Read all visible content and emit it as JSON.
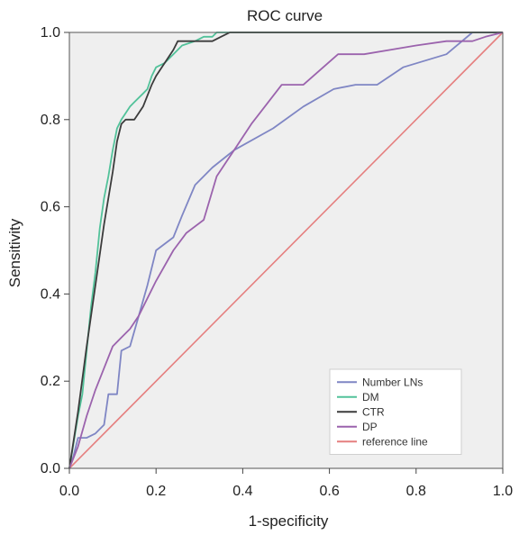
{
  "chart_data": {
    "type": "line",
    "title": "ROC curve",
    "xlabel": "1-specificity",
    "ylabel": "Sensitivity",
    "xlim": [
      0,
      1
    ],
    "ylim": [
      0,
      1
    ],
    "xticks": [
      "0.0",
      "0.2",
      "0.4",
      "0.6",
      "0.8",
      "1.0"
    ],
    "yticks": [
      "0.0",
      "0.2",
      "0.4",
      "0.6",
      "0.8",
      "1.0"
    ],
    "grid": false,
    "plot_background": "#efefef",
    "legend_position": "bottom-right",
    "series": [
      {
        "name": "Number LNs",
        "color": "#7f86c4",
        "x": [
          0,
          0.01,
          0.02,
          0.04,
          0.06,
          0.08,
          0.09,
          0.11,
          0.12,
          0.14,
          0.16,
          0.18,
          0.2,
          0.24,
          0.26,
          0.29,
          0.33,
          0.38,
          0.47,
          0.54,
          0.61,
          0.66,
          0.71,
          0.77,
          0.87,
          0.93,
          0.96,
          1.0
        ],
        "y": [
          0,
          0.03,
          0.07,
          0.07,
          0.08,
          0.1,
          0.17,
          0.17,
          0.27,
          0.28,
          0.35,
          0.42,
          0.5,
          0.53,
          0.58,
          0.65,
          0.69,
          0.73,
          0.78,
          0.83,
          0.87,
          0.88,
          0.88,
          0.92,
          0.95,
          1.0,
          1.0,
          1.0
        ]
      },
      {
        "name": "DM",
        "color": "#52c29a",
        "x": [
          0,
          0.01,
          0.02,
          0.03,
          0.04,
          0.05,
          0.06,
          0.07,
          0.08,
          0.09,
          0.1,
          0.11,
          0.12,
          0.14,
          0.15,
          0.17,
          0.18,
          0.19,
          0.2,
          0.22,
          0.24,
          0.26,
          0.29,
          0.31,
          0.33,
          0.34,
          0.35,
          0.37,
          0.4,
          0.6,
          0.8,
          1.0
        ],
        "y": [
          0,
          0.06,
          0.12,
          0.17,
          0.27,
          0.37,
          0.45,
          0.55,
          0.62,
          0.67,
          0.73,
          0.78,
          0.8,
          0.83,
          0.84,
          0.86,
          0.87,
          0.9,
          0.92,
          0.93,
          0.95,
          0.97,
          0.98,
          0.99,
          0.99,
          1.0,
          1.0,
          1.0,
          1.0,
          1.0,
          1.0,
          1.0
        ]
      },
      {
        "name": "CTR",
        "color": "#3b3b3b",
        "x": [
          0,
          0.02,
          0.04,
          0.06,
          0.08,
          0.1,
          0.11,
          0.12,
          0.13,
          0.15,
          0.17,
          0.19,
          0.2,
          0.22,
          0.24,
          0.25,
          0.3,
          0.33,
          0.35,
          0.37,
          0.45,
          0.6,
          0.8,
          1.0
        ],
        "y": [
          0,
          0.13,
          0.28,
          0.42,
          0.56,
          0.68,
          0.75,
          0.79,
          0.8,
          0.8,
          0.83,
          0.88,
          0.9,
          0.93,
          0.96,
          0.98,
          0.98,
          0.98,
          0.99,
          1.0,
          1.0,
          1.0,
          1.0,
          1.0
        ]
      },
      {
        "name": "DP",
        "color": "#9b63ad",
        "x": [
          0,
          0.02,
          0.04,
          0.06,
          0.08,
          0.1,
          0.12,
          0.14,
          0.16,
          0.18,
          0.2,
          0.24,
          0.27,
          0.31,
          0.34,
          0.38,
          0.42,
          0.49,
          0.54,
          0.62,
          0.68,
          0.74,
          0.8,
          0.87,
          0.93,
          0.96,
          1.0
        ],
        "y": [
          0,
          0.05,
          0.12,
          0.18,
          0.23,
          0.28,
          0.3,
          0.32,
          0.35,
          0.39,
          0.43,
          0.5,
          0.54,
          0.57,
          0.67,
          0.73,
          0.79,
          0.88,
          0.88,
          0.95,
          0.95,
          0.96,
          0.97,
          0.98,
          0.98,
          0.99,
          1.0
        ]
      },
      {
        "name": "reference line",
        "color": "#e57f7f",
        "x": [
          0,
          1
        ],
        "y": [
          0,
          1
        ]
      }
    ]
  }
}
